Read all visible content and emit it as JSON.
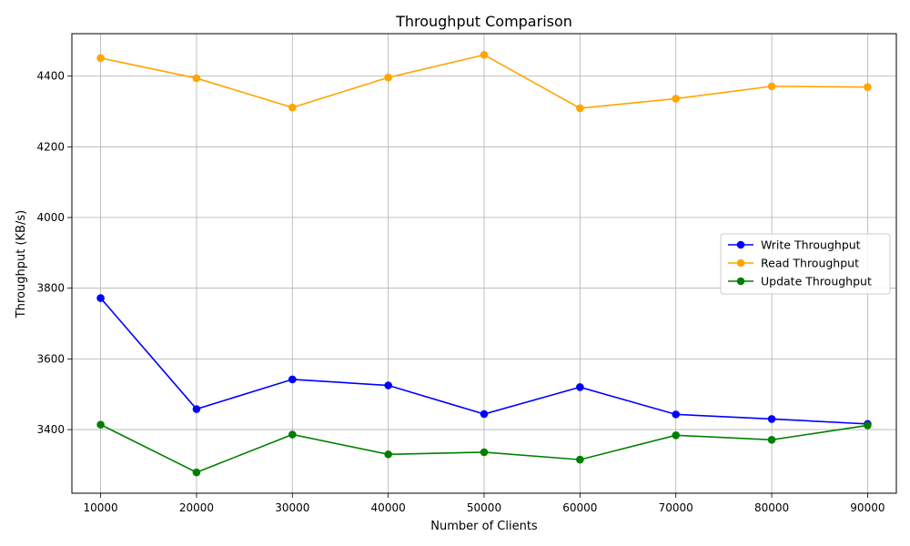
{
  "chart_data": {
    "type": "line",
    "title": "Throughput Comparison",
    "xlabel": "Number of Clients",
    "ylabel": "Throughput (KB/s)",
    "x": [
      10000,
      20000,
      30000,
      40000,
      50000,
      60000,
      70000,
      80000,
      90000
    ],
    "x_ticks": [
      10000,
      20000,
      30000,
      40000,
      50000,
      60000,
      70000,
      80000,
      90000
    ],
    "y_ticks": [
      3400,
      3600,
      3800,
      4000,
      4200,
      4400
    ],
    "xlim": [
      7000,
      93000
    ],
    "ylim": [
      3220,
      4520
    ],
    "grid": true,
    "legend_position": "center-right",
    "series": [
      {
        "name": "Write Throughput",
        "color": "#0000ff",
        "values": [
          3772,
          3458,
          3542,
          3525,
          3444,
          3520,
          3443,
          3430,
          3416
        ]
      },
      {
        "name": "Read Throughput",
        "color": "#ffa500",
        "values": [
          4451,
          4394,
          4311,
          4396,
          4460,
          4309,
          4336,
          4371,
          4369
        ]
      },
      {
        "name": "Update Throughput",
        "color": "#008000",
        "values": [
          3414,
          3279,
          3386,
          3330,
          3336,
          3315,
          3384,
          3371,
          3412
        ]
      }
    ]
  }
}
